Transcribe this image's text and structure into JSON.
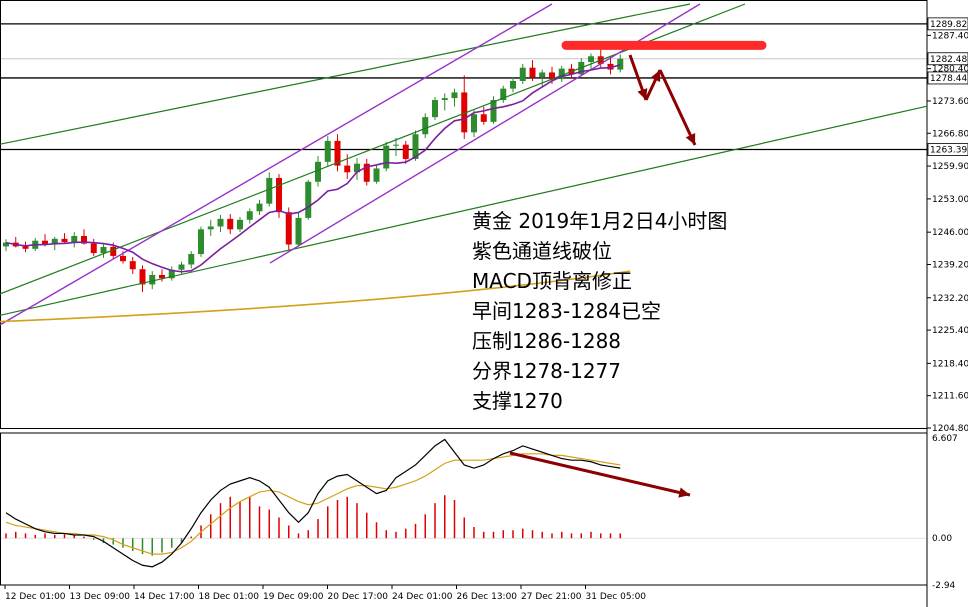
{
  "chart_data": [
    {
      "type": "candlestick",
      "symbol": "黄金",
      "timeframe": "4小时图",
      "ylim": [
        1204.8,
        1294
      ],
      "y_ticks": [
        1287.4,
        1280.4,
        1273.6,
        1266.8,
        1259.9,
        1253.0,
        1246.0,
        1239.2,
        1232.2,
        1225.4,
        1218.4,
        1211.6,
        1204.8
      ],
      "price_labels": [
        {
          "value": 1289.82,
          "label": "1289.82"
        },
        {
          "value": 1282.48,
          "label": "1282.48"
        },
        {
          "value": 1278.44,
          "label": "1278.44"
        },
        {
          "value": 1263.39,
          "label": "1263.39"
        }
      ],
      "horizontal_lines": [
        1289.82,
        1278.44,
        1263.39
      ],
      "x_labels": [
        "12 Dec 01:00",
        "13 Dec 09:00",
        "14 Dec 17:00",
        "18 Dec 01:00",
        "19 Dec 09:00",
        "20 Dec 17:00",
        "24 Dec 01:00",
        "26 Dec 13:00",
        "27 Dec 21:00",
        "31 Dec 05:00"
      ],
      "candles": [
        [
          1243.0,
          1244.5,
          1242.0,
          1243.8
        ],
        [
          1243.8,
          1245.0,
          1242.8,
          1243.0
        ],
        [
          1243.0,
          1244.0,
          1241.8,
          1242.5
        ],
        [
          1242.5,
          1244.8,
          1242.0,
          1244.2
        ],
        [
          1244.2,
          1245.6,
          1243.0,
          1243.4
        ],
        [
          1243.4,
          1245.0,
          1242.2,
          1244.6
        ],
        [
          1244.6,
          1245.8,
          1243.8,
          1243.9
        ],
        [
          1243.9,
          1246.0,
          1242.8,
          1245.2
        ],
        [
          1245.2,
          1246.6,
          1243.4,
          1243.6
        ],
        [
          1243.6,
          1244.6,
          1241.0,
          1241.6
        ],
        [
          1241.6,
          1243.4,
          1240.6,
          1242.9
        ],
        [
          1242.9,
          1243.8,
          1240.4,
          1241.0
        ],
        [
          1241.0,
          1242.0,
          1239.4,
          1239.9
        ],
        [
          1239.9,
          1240.8,
          1237.2,
          1238.2
        ],
        [
          1238.2,
          1239.0,
          1233.4,
          1235.0
        ],
        [
          1235.0,
          1237.8,
          1234.0,
          1237.0
        ],
        [
          1237.0,
          1238.2,
          1235.6,
          1236.3
        ],
        [
          1236.3,
          1238.8,
          1235.8,
          1238.1
        ],
        [
          1238.1,
          1239.8,
          1237.2,
          1239.2
        ],
        [
          1239.2,
          1242.0,
          1238.4,
          1241.4
        ],
        [
          1241.4,
          1247.2,
          1240.8,
          1246.6
        ],
        [
          1246.6,
          1248.6,
          1245.2,
          1247.2
        ],
        [
          1247.2,
          1249.6,
          1246.0,
          1248.8
        ],
        [
          1248.8,
          1249.8,
          1245.6,
          1246.6
        ],
        [
          1246.6,
          1249.2,
          1246.0,
          1248.6
        ],
        [
          1248.6,
          1251.0,
          1247.8,
          1250.4
        ],
        [
          1250.4,
          1252.8,
          1249.6,
          1252.0
        ],
        [
          1252.0,
          1258.6,
          1251.4,
          1257.4
        ],
        [
          1257.4,
          1258.2,
          1249.0,
          1250.2
        ],
        [
          1250.2,
          1251.2,
          1242.2,
          1243.4
        ],
        [
          1243.4,
          1250.2,
          1243.0,
          1249.0
        ],
        [
          1249.0,
          1257.0,
          1248.6,
          1256.6
        ],
        [
          1256.6,
          1262.0,
          1255.6,
          1260.8
        ],
        [
          1260.8,
          1266.2,
          1259.8,
          1265.2
        ],
        [
          1265.2,
          1266.6,
          1258.8,
          1260.0
        ],
        [
          1260.0,
          1262.4,
          1257.2,
          1258.6
        ],
        [
          1258.6,
          1261.6,
          1257.0,
          1260.4
        ],
        [
          1260.4,
          1261.4,
          1255.8,
          1256.6
        ],
        [
          1256.6,
          1260.0,
          1256.2,
          1259.4
        ],
        [
          1259.4,
          1265.0,
          1258.8,
          1264.2
        ],
        [
          1264.2,
          1265.8,
          1262.0,
          1264.4
        ],
        [
          1264.4,
          1265.2,
          1260.4,
          1261.4
        ],
        [
          1261.4,
          1267.4,
          1261.0,
          1266.6
        ],
        [
          1266.6,
          1271.0,
          1265.8,
          1270.2
        ],
        [
          1270.2,
          1274.4,
          1269.6,
          1273.8
        ],
        [
          1273.8,
          1275.2,
          1271.6,
          1274.2
        ],
        [
          1274.2,
          1276.2,
          1272.4,
          1275.4
        ],
        [
          1275.4,
          1279.0,
          1265.6,
          1267.0
        ],
        [
          1267.0,
          1271.6,
          1266.0,
          1270.8
        ],
        [
          1270.8,
          1272.4,
          1268.6,
          1269.2
        ],
        [
          1269.2,
          1274.6,
          1268.8,
          1273.8
        ],
        [
          1273.8,
          1276.8,
          1273.2,
          1276.2
        ],
        [
          1276.2,
          1278.6,
          1275.4,
          1277.8
        ],
        [
          1277.8,
          1281.4,
          1277.2,
          1280.6
        ],
        [
          1280.6,
          1282.2,
          1277.8,
          1278.6
        ],
        [
          1278.6,
          1280.2,
          1276.6,
          1279.6
        ],
        [
          1279.6,
          1280.8,
          1277.2,
          1278.2
        ],
        [
          1278.2,
          1281.0,
          1277.6,
          1280.4
        ],
        [
          1280.4,
          1281.4,
          1278.4,
          1279.2
        ],
        [
          1279.2,
          1282.6,
          1278.8,
          1281.8
        ],
        [
          1281.8,
          1283.6,
          1280.2,
          1283.0
        ],
        [
          1283.0,
          1284.4,
          1280.6,
          1281.4
        ],
        [
          1281.4,
          1282.8,
          1279.2,
          1280.2
        ],
        [
          1280.2,
          1283.4,
          1279.6,
          1282.48
        ]
      ],
      "overlay_lines": [
        {
          "name": "purple moving average",
          "color": "#7b1fa2"
        },
        {
          "name": "orange moving average",
          "color": "#d4a017"
        },
        {
          "name": "purple channel",
          "color": "#9932cc"
        },
        {
          "name": "green trend lines",
          "color": "#1e7b1e"
        }
      ],
      "annotations_marks": [
        {
          "kind": "red highlight bar",
          "color": "#ff2a2a"
        },
        {
          "kind": "down arrows",
          "color": "#8b0000"
        }
      ],
      "colors": {
        "up": "#2e8b2e",
        "down": "#e00000",
        "axis": "#333333"
      }
    },
    {
      "type": "line+bar",
      "indicator": "MACD",
      "ylim": [
        -2.94,
        6.607
      ],
      "y_ticks": [
        {
          "value": 6.607,
          "label": "6.607"
        },
        {
          "value": 0.0,
          "label": "0.00"
        },
        {
          "value": -2.94,
          "label": "-2.94"
        }
      ],
      "histogram": [
        0.3,
        0.4,
        0.3,
        0.2,
        0.3,
        0.2,
        0.3,
        0.2,
        0.1,
        -0.1,
        -0.3,
        -0.4,
        -0.6,
        -0.8,
        -1.0,
        -1.1,
        -0.9,
        -0.6,
        -0.3,
        0.1,
        0.8,
        1.5,
        2.2,
        2.6,
        2.3,
        2.6,
        2.0,
        1.8,
        1.3,
        0.8,
        0.3,
        0.5,
        1.2,
        2.0,
        2.4,
        2.6,
        2.2,
        1.6,
        1.0,
        0.5,
        0.4,
        0.6,
        0.9,
        1.5,
        2.2,
        2.7,
        2.4,
        1.3,
        0.7,
        0.4,
        0.4,
        0.5,
        0.5,
        0.6,
        0.5,
        0.4,
        0.3,
        0.4,
        0.3,
        0.3,
        0.4,
        0.3,
        0.3,
        0.3
      ],
      "macd_line": [
        1.6,
        1.2,
        0.9,
        0.6,
        0.4,
        0.3,
        0.3,
        0.2,
        0.2,
        0.1,
        -0.2,
        -0.6,
        -1.0,
        -1.4,
        -1.7,
        -1.8,
        -1.5,
        -1.0,
        -0.3,
        0.6,
        1.6,
        2.4,
        3.0,
        3.4,
        3.6,
        3.8,
        3.6,
        3.2,
        2.4,
        1.6,
        1.0,
        1.6,
        2.8,
        3.6,
        3.9,
        4.0,
        3.6,
        3.2,
        2.8,
        3.0,
        3.8,
        4.2,
        4.6,
        5.2,
        5.8,
        6.2,
        5.4,
        4.6,
        4.4,
        4.6,
        5.0,
        5.3,
        5.5,
        5.8,
        5.6,
        5.4,
        5.2,
        5.0,
        4.9,
        4.9,
        4.8,
        4.6,
        4.5,
        4.4
      ],
      "signal_line": [
        1.0,
        0.8,
        0.7,
        0.6,
        0.5,
        0.4,
        0.3,
        0.3,
        0.2,
        0.2,
        0.1,
        -0.1,
        -0.4,
        -0.6,
        -0.8,
        -1.0,
        -1.0,
        -0.9,
        -0.6,
        -0.2,
        0.4,
        0.9,
        1.4,
        1.9,
        2.3,
        2.6,
        2.9,
        3.0,
        2.9,
        2.6,
        2.3,
        2.1,
        2.2,
        2.5,
        2.8,
        3.1,
        3.3,
        3.3,
        3.2,
        3.1,
        3.2,
        3.4,
        3.6,
        3.9,
        4.3,
        4.7,
        4.9,
        4.9,
        4.9,
        4.9,
        5.0,
        5.1,
        5.2,
        5.3,
        5.3,
        5.3,
        5.2,
        5.2,
        5.1,
        5.0,
        4.9,
        4.8,
        4.7,
        4.6
      ],
      "colors": {
        "macd": "#000000",
        "signal": "#d4a017",
        "hist_pos": "#e00000",
        "hist_neg": "#2e8b2e",
        "arrow": "#8b0000"
      }
    }
  ],
  "annotation_lines": [
    "黄金 2019年1月2日4小时图",
    "紫色通道线破位",
    "MACD顶背离修正",
    "早间1283-1284已空",
    "压制1286-1288",
    "分界1278-1277",
    "支撑1270"
  ]
}
